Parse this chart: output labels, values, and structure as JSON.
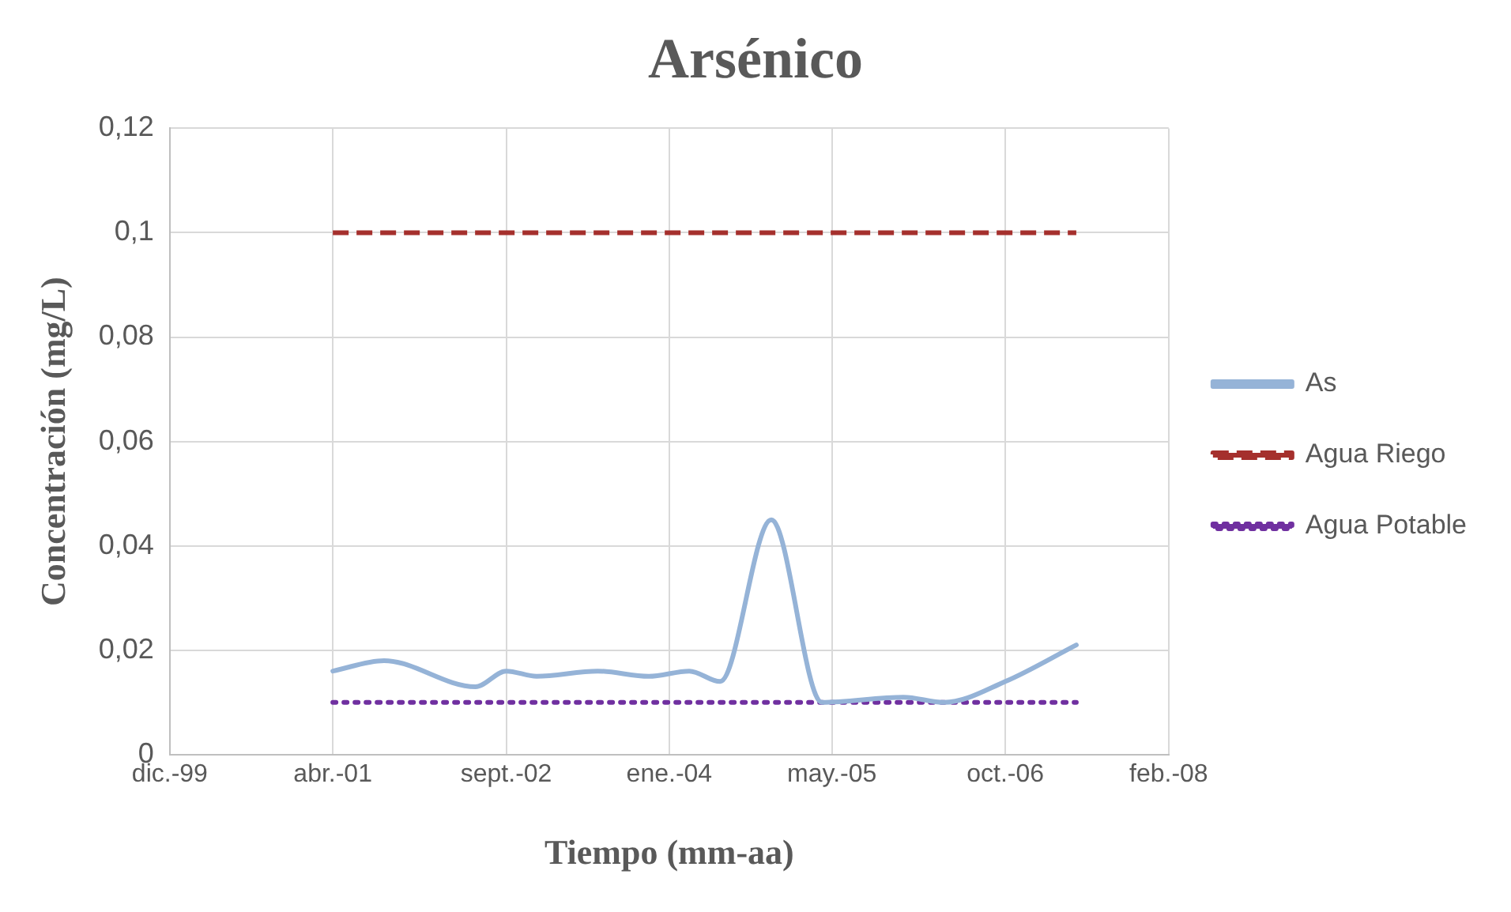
{
  "chart_data": {
    "type": "line",
    "title": "Arsénico",
    "xlabel": "Tiempo (mm-aa)",
    "ylabel": "Concentración (mg/L)",
    "x": [
      "2001-04-01",
      "2001-09-01",
      "2002-06-01",
      "2002-09-01",
      "2002-12-01",
      "2003-06-01",
      "2003-11-01",
      "2004-03-01",
      "2004-06-01",
      "2004-11-01",
      "2005-04-01",
      "2005-12-01",
      "2006-04-01",
      "2006-10-01",
      "2007-05-01"
    ],
    "series": [
      {
        "name": "As",
        "color": "#95b3d7",
        "line_style": "solid",
        "values": [
          0.016,
          0.018,
          0.013,
          0.016,
          0.015,
          0.016,
          0.015,
          0.016,
          0.014,
          0.045,
          0.01,
          0.011,
          0.01,
          0.014,
          0.021
        ]
      },
      {
        "name": "Agua Riego",
        "color": "#a5302d",
        "line_style": "dashed",
        "x": [
          "2001-04-01",
          "2007-05-01"
        ],
        "values": [
          0.1,
          0.1
        ]
      },
      {
        "name": "Agua Potable",
        "color": "#7030a0",
        "line_style": "dotted",
        "x": [
          "2001-04-01",
          "2007-05-01"
        ],
        "values": [
          0.01,
          0.01
        ]
      }
    ],
    "xlim": [
      "1999-12-01",
      "2008-02-01"
    ],
    "xticks": [
      {
        "value": "1999-12-01",
        "label": "dic.-99"
      },
      {
        "value": "2001-04-01",
        "label": "abr.-01"
      },
      {
        "value": "2002-09-01",
        "label": "sept.-02"
      },
      {
        "value": "2004-01-01",
        "label": "ene.-04"
      },
      {
        "value": "2005-05-01",
        "label": "may.-05"
      },
      {
        "value": "2006-10-01",
        "label": "oct.-06"
      },
      {
        "value": "2008-02-01",
        "label": "feb.-08"
      }
    ],
    "ylim": [
      0,
      0.12
    ],
    "yticks": [
      0,
      {
        "value": 0.02,
        "label": "0,02"
      },
      {
        "value": 0.04,
        "label": "0,04"
      },
      {
        "value": 0.06,
        "label": "0,06"
      },
      {
        "value": 0.08,
        "label": "0,08"
      },
      {
        "value": 0.1,
        "label": "0,1"
      },
      {
        "value": 0.12,
        "label": "0,12"
      }
    ],
    "grid": true,
    "legend": "right",
    "marker": "none"
  }
}
